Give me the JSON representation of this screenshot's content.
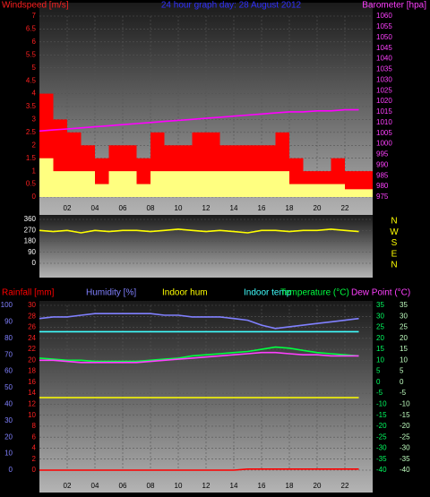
{
  "chart_data": [
    {
      "type": "combo",
      "title": "24 hour graph day: 28 August 2012",
      "y_label": "Windspeed [m/s]",
      "y2_label": "Barometer [hpa]",
      "x": [
        0,
        1,
        2,
        3,
        4,
        5,
        6,
        7,
        8,
        9,
        10,
        11,
        12,
        13,
        14,
        15,
        16,
        17,
        18,
        19,
        20,
        21,
        22,
        23
      ],
      "xlim": [
        0,
        24
      ],
      "xticks": [
        {
          "value": 2,
          "label": "02"
        },
        {
          "value": 4,
          "label": "04"
        },
        {
          "value": 6,
          "label": "06"
        },
        {
          "value": 8,
          "label": "08"
        },
        10,
        12,
        14,
        16,
        18,
        20,
        22
      ],
      "ylim": [
        0,
        7
      ],
      "yticks": [
        0,
        0.5,
        1,
        1.5,
        2,
        2.5,
        3,
        3.5,
        4,
        4.5,
        5,
        5.5,
        6,
        6.5,
        7
      ],
      "y_color": "#ff2020",
      "y2lim": [
        975,
        1060
      ],
      "y2ticks": [
        975,
        980,
        985,
        990,
        995,
        1000,
        1005,
        1010,
        1015,
        1020,
        1025,
        1030,
        1035,
        1040,
        1045,
        1050,
        1055,
        1060
      ],
      "y2_color": "#ff40ff",
      "grid": true,
      "series": [
        {
          "type": "bar",
          "color": "#ff0000",
          "values": [
            4,
            3,
            2.5,
            2,
            1.5,
            2,
            2,
            1.5,
            2.5,
            2,
            2,
            2.5,
            2.5,
            2,
            2,
            2,
            2,
            2.5,
            1.5,
            1,
            1,
            1.5,
            1,
            1
          ]
        },
        {
          "type": "bar",
          "color": "#ffff80",
          "values": [
            1.5,
            1,
            1,
            1,
            0.5,
            1,
            1,
            0.5,
            1,
            1,
            1,
            1,
            1,
            1,
            1,
            1,
            1,
            1,
            0.5,
            0.5,
            0.5,
            0.5,
            0.3,
            0.3
          ]
        },
        {
          "type": "line",
          "axis": "y2",
          "color": "#ff00ff",
          "values": [
            1006,
            1006.5,
            1007,
            1007.5,
            1008,
            1008.5,
            1009,
            1009.5,
            1010,
            1010.5,
            1011,
            1011.5,
            1012,
            1012.5,
            1013,
            1013.5,
            1014,
            1014.5,
            1015,
            1015,
            1015.5,
            1015.5,
            1016,
            1016
          ]
        }
      ]
    },
    {
      "type": "combo",
      "x": [
        0,
        1,
        2,
        3,
        4,
        5,
        6,
        7,
        8,
        9,
        10,
        11,
        12,
        13,
        14,
        15,
        16,
        17,
        18,
        19,
        20,
        21,
        22,
        23
      ],
      "xlim": [
        0,
        24
      ],
      "ylim": [
        0,
        360
      ],
      "yticks": [
        0,
        90,
        180,
        270,
        360
      ],
      "y_color": "#ffffff",
      "compass": [
        "N",
        "W",
        "S",
        "E",
        "N"
      ],
      "grid": true,
      "series": [
        {
          "type": "line",
          "color": "#ffff00",
          "values": [
            270,
            260,
            270,
            250,
            270,
            260,
            270,
            270,
            260,
            270,
            280,
            270,
            260,
            270,
            260,
            250,
            270,
            270,
            260,
            270,
            270,
            280,
            270,
            260
          ]
        }
      ]
    },
    {
      "type": "combo",
      "x": [
        0,
        1,
        2,
        3,
        4,
        5,
        6,
        7,
        8,
        9,
        10,
        11,
        12,
        13,
        14,
        15,
        16,
        17,
        18,
        19,
        20,
        21,
        22,
        23
      ],
      "xlim": [
        0,
        24
      ],
      "xticks": [
        {
          "value": 2,
          "label": "02"
        },
        {
          "value": 4,
          "label": "04"
        },
        {
          "value": 6,
          "label": "06"
        },
        {
          "value": 8,
          "label": "08"
        },
        10,
        12,
        14,
        16,
        18,
        20,
        22
      ],
      "ylim": [
        0,
        30
      ],
      "yticks": [
        0,
        2,
        4,
        6,
        8,
        10,
        12,
        14,
        16,
        18,
        20,
        22,
        24,
        26,
        28,
        30
      ],
      "y_color": "#ff2020",
      "y3lim": [
        0,
        100
      ],
      "y3ticks": [
        0,
        10,
        20,
        30,
        40,
        50,
        60,
        70,
        80,
        90,
        100
      ],
      "y3_color": "#8080ff",
      "y2lim": [
        -40,
        35
      ],
      "y2ticks": [
        -40,
        -35,
        -30,
        -25,
        -20,
        -15,
        -10,
        -5,
        0,
        5,
        10,
        15,
        20,
        25,
        30,
        35
      ],
      "y2_color": "#00ff60",
      "grid": true,
      "series": [
        {
          "name": "Rainfall [mm]",
          "type": "line",
          "color": "#ff0000",
          "values": [
            0,
            0,
            0,
            0,
            0,
            0,
            0,
            0,
            0,
            0,
            0,
            0,
            0,
            0,
            0,
            0.2,
            0.2,
            0.2,
            0.2,
            0.2,
            0.2,
            0.2,
            0.2,
            0.2
          ]
        },
        {
          "name": "Humidity [%]",
          "type": "line",
          "axis": "y3",
          "color": "#8080ff",
          "values": [
            92,
            93,
            93,
            94,
            95,
            95,
            95,
            95,
            95,
            94,
            94,
            93,
            93,
            93,
            92,
            91,
            88,
            86,
            87,
            88,
            89,
            90,
            91,
            92
          ]
        },
        {
          "name": "Indoor hum",
          "type": "line",
          "axis": "y3",
          "color": "#ffff00",
          "values": [
            44,
            44,
            44,
            44,
            44,
            44,
            44,
            44,
            44,
            44,
            44,
            44,
            44,
            44,
            44,
            44,
            44,
            44,
            44,
            44,
            44,
            44,
            44,
            44
          ]
        },
        {
          "name": "Indoor temp",
          "type": "line",
          "axis": "y2",
          "color": "#40ffff",
          "values": [
            23,
            23,
            23,
            23,
            23,
            23,
            23,
            23,
            23,
            23,
            23,
            23,
            23,
            23,
            23,
            23,
            23,
            23,
            23,
            23,
            23,
            23,
            23,
            23
          ]
        },
        {
          "name": "Temperature (°C)",
          "type": "line",
          "axis": "y2",
          "color": "#00ff40",
          "values": [
            11,
            10.5,
            10,
            10,
            9.5,
            9.5,
            9.5,
            9.5,
            10,
            10.5,
            11,
            12,
            12.5,
            13,
            13.5,
            14,
            15,
            16,
            15.5,
            14.5,
            13.5,
            13,
            12.5,
            12
          ]
        },
        {
          "name": "Dew Point (°C)",
          "type": "line",
          "axis": "y2",
          "color": "#ff40ff",
          "values": [
            10,
            10,
            9.5,
            9,
            9,
            9,
            9,
            9,
            9.5,
            10,
            10.5,
            11,
            11.5,
            12,
            12.5,
            13,
            13.5,
            13.5,
            13,
            12.5,
            12.5,
            12,
            12,
            12
          ]
        }
      ]
    }
  ]
}
